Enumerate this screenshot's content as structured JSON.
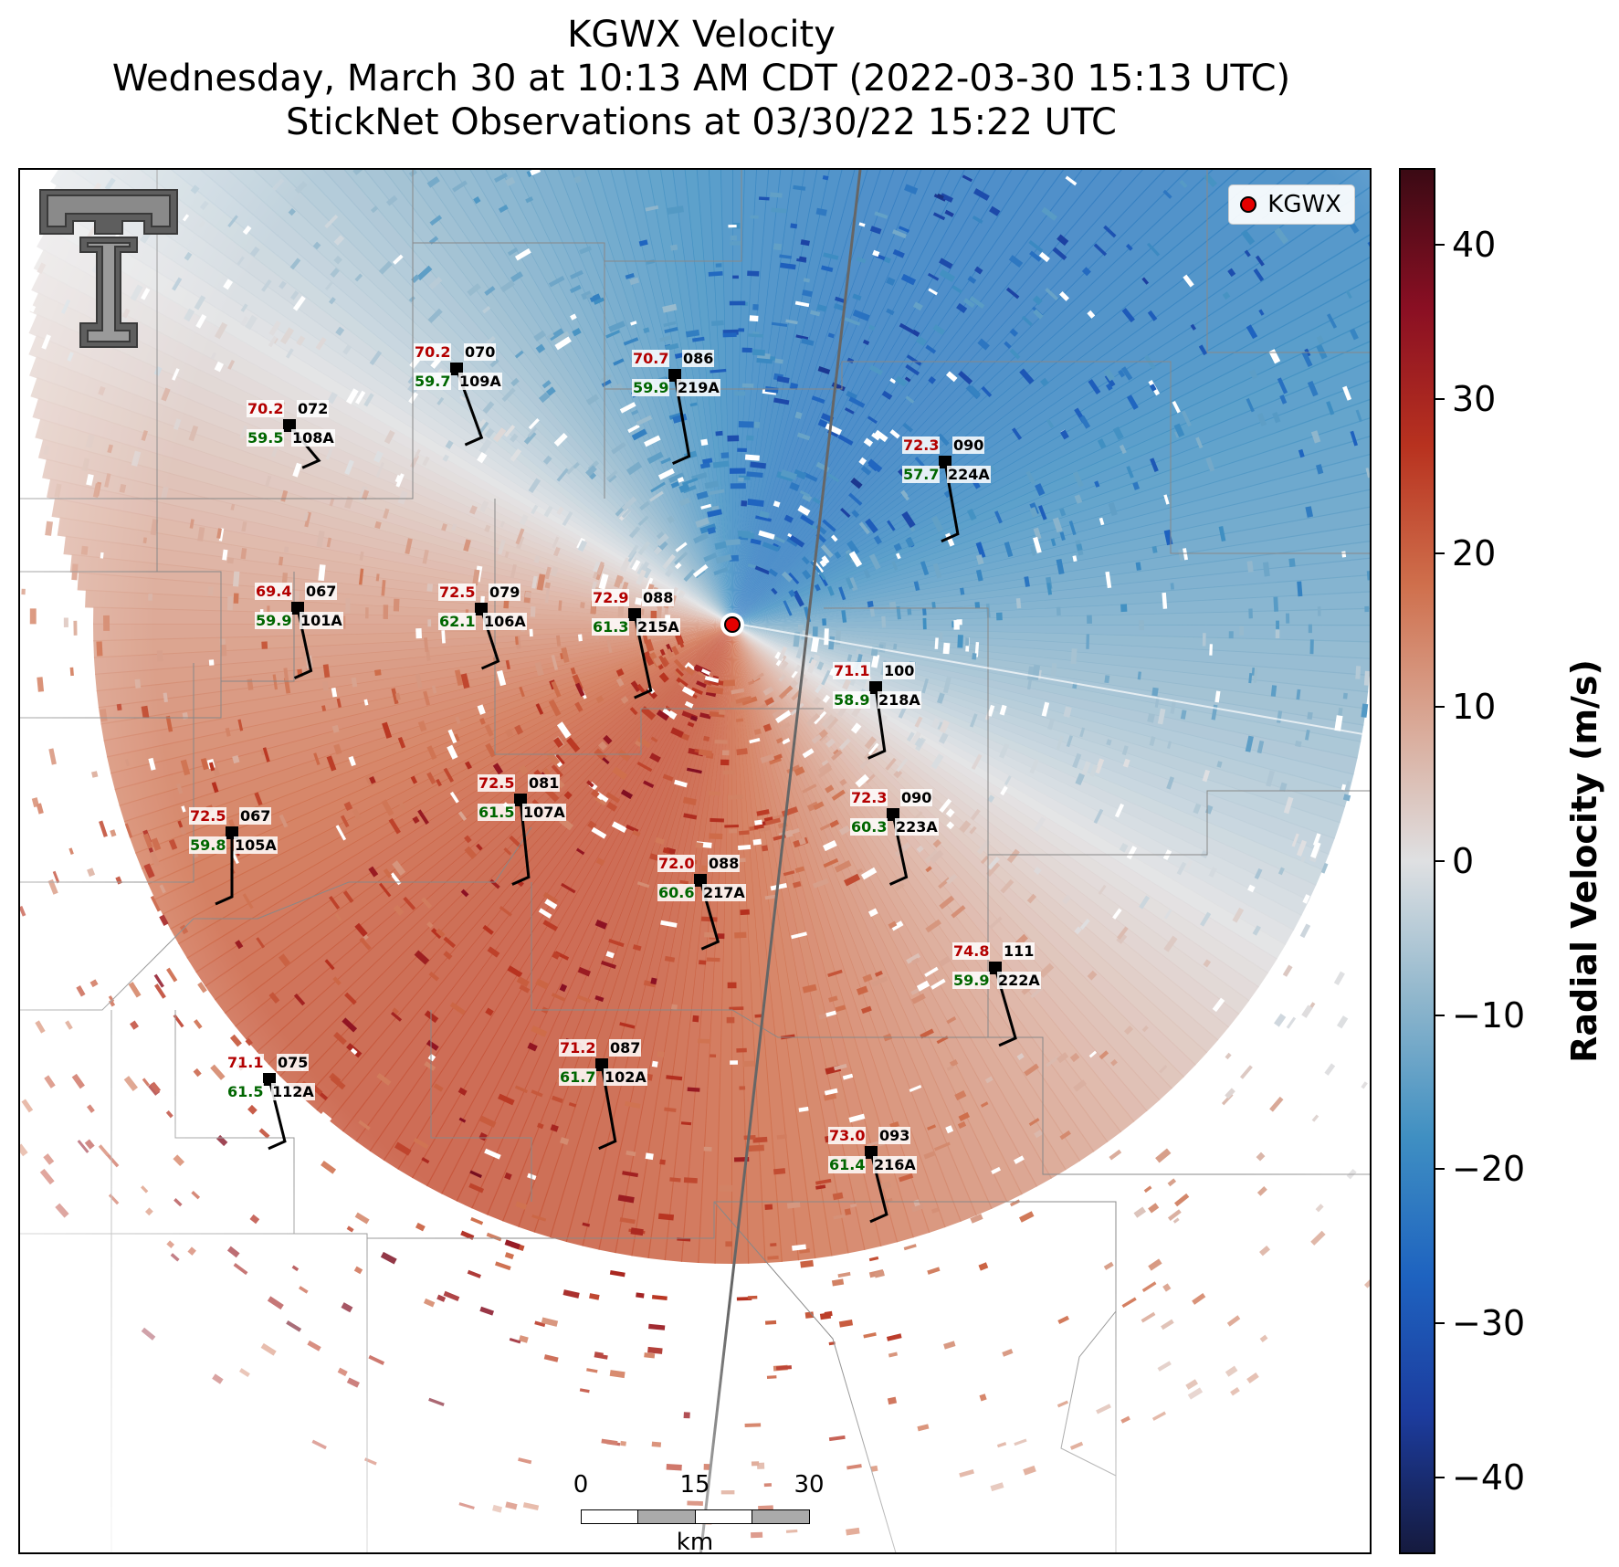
{
  "title": {
    "line1": "KGWX Velocity",
    "line2": "Wednesday, March 30 at 10:13 AM CDT (2022-03-30 15:13 UTC)",
    "line3": "StickNet Observations at 03/30/22 15:22 UTC"
  },
  "legend": {
    "label": "KGWX",
    "color": "#e50000"
  },
  "scale_bar": {
    "ticks": [
      "0",
      "15",
      "30"
    ],
    "unit": "km"
  },
  "colorbar": {
    "title": "Radial Velocity (m/s)",
    "min": -45,
    "max": 45,
    "ticks": [
      {
        "value": 40,
        "label": "40"
      },
      {
        "value": 30,
        "label": "30"
      },
      {
        "value": 20,
        "label": "20"
      },
      {
        "value": 10,
        "label": "10"
      },
      {
        "value": 0,
        "label": "0"
      },
      {
        "value": -10,
        "label": "−10"
      },
      {
        "value": -20,
        "label": "−20"
      },
      {
        "value": -30,
        "label": "−30"
      },
      {
        "value": -40,
        "label": "−40"
      }
    ],
    "colors": [
      "#151a3e",
      "#1c3c9e",
      "#1e63c0",
      "#3f8fc2",
      "#8fb6cc",
      "#dfe0e2",
      "#d9a896",
      "#cf6f4c",
      "#b8321f",
      "#8a0f23",
      "#3b0a14"
    ]
  },
  "stations": [
    {
      "id": "109A",
      "temp": "70.2",
      "dew": "59.7",
      "pres": "070"
    },
    {
      "id": "219A",
      "temp": "70.7",
      "dew": "59.9",
      "pres": "086"
    },
    {
      "id": "108A",
      "temp": "70.2",
      "dew": "59.5",
      "pres": "072"
    },
    {
      "id": "224A",
      "temp": "72.3",
      "dew": "57.7",
      "pres": "090"
    },
    {
      "id": "101A",
      "temp": "69.4",
      "dew": "59.9",
      "pres": "067"
    },
    {
      "id": "106A",
      "temp": "72.5",
      "dew": "62.1",
      "pres": "079"
    },
    {
      "id": "215A",
      "temp": "72.9",
      "dew": "61.3",
      "pres": "088"
    },
    {
      "id": "218A",
      "temp": "71.1",
      "dew": "58.9",
      "pres": "100"
    },
    {
      "id": "107A",
      "temp": "72.5",
      "dew": "61.5",
      "pres": "081"
    },
    {
      "id": "223A",
      "temp": "72.3",
      "dew": "60.3",
      "pres": "090"
    },
    {
      "id": "105A",
      "temp": "72.5",
      "dew": "59.8",
      "pres": "067"
    },
    {
      "id": "217A",
      "temp": "72.0",
      "dew": "60.6",
      "pres": "088"
    },
    {
      "id": "222A",
      "temp": "74.8",
      "dew": "59.9",
      "pres": "111"
    },
    {
      "id": "102A",
      "temp": "71.2",
      "dew": "61.7",
      "pres": "087"
    },
    {
      "id": "112A",
      "temp": "71.1",
      "dew": "61.5",
      "pres": "075"
    },
    {
      "id": "216A",
      "temp": "73.0",
      "dew": "61.4",
      "pres": "093"
    }
  ]
}
